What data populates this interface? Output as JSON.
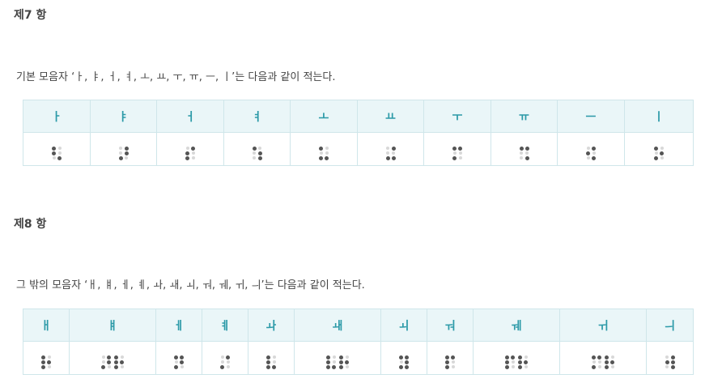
{
  "section7": {
    "heading": "제7 항",
    "description": "기본 모음자 ‘ㅏ, ㅑ, ㅓ, ㅕ, ㅗ, ㅛ, ㅜ, ㅠ, ㅡ, ㅣ’는 다음과 같이 적는다.",
    "columns": [
      {
        "label": "ㅏ",
        "braille": "⠣"
      },
      {
        "label": "ㅑ",
        "braille": "⠜"
      },
      {
        "label": "ㅓ",
        "braille": "⠎"
      },
      {
        "label": "ㅕ",
        "braille": "⠱"
      },
      {
        "label": "ㅗ",
        "braille": "⠥"
      },
      {
        "label": "ㅛ",
        "braille": "⠬"
      },
      {
        "label": "ㅜ",
        "braille": "⠍"
      },
      {
        "label": "ㅠ",
        "braille": "⠩"
      },
      {
        "label": "ㅡ",
        "braille": "⠪"
      },
      {
        "label": "ㅣ",
        "braille": "⠕"
      }
    ]
  },
  "section8": {
    "heading": "제8 항",
    "description": "그 밖의 모음자 ‘ㅐ, ㅒ, ㅔ, ㅖ, ㅘ, ㅙ, ㅚ, ㅝ, ㅞ, ㅟ, ㅢ’는 다음과 같이 적는다.",
    "columns": [
      {
        "label": "ㅐ",
        "braille": "⠗"
      },
      {
        "label": "ㅒ",
        "braille": "⠜⠗"
      },
      {
        "label": "ㅔ",
        "braille": "⠝"
      },
      {
        "label": "ㅖ",
        "braille": "⠌"
      },
      {
        "label": "ㅘ",
        "braille": "⠧"
      },
      {
        "label": "ㅙ",
        "braille": "⠧⠗"
      },
      {
        "label": "ㅚ",
        "braille": "⠽"
      },
      {
        "label": "ㅝ",
        "braille": "⠏"
      },
      {
        "label": "ㅞ",
        "braille": "⠏⠗"
      },
      {
        "label": "ㅟ",
        "braille": "⠍⠗"
      },
      {
        "label": "ㅢ",
        "braille": "⠺"
      }
    ]
  }
}
